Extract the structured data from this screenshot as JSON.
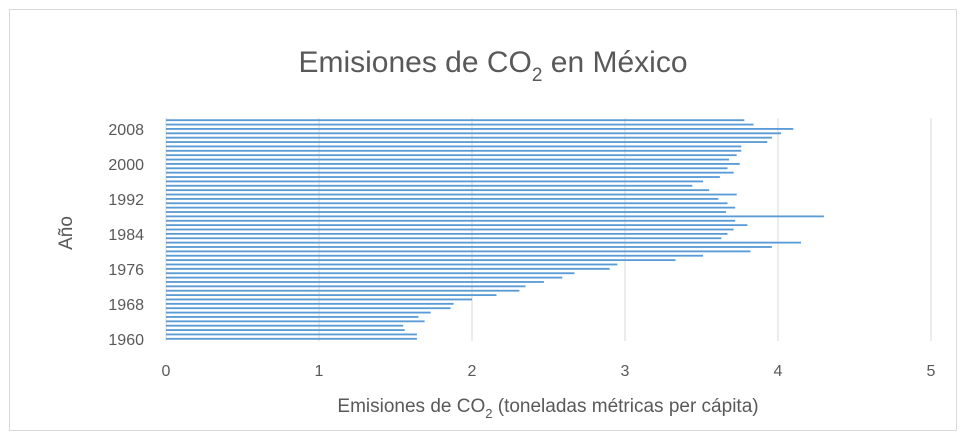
{
  "chart_data": {
    "type": "bar",
    "orientation": "horizontal",
    "title": "Emisiones de CO",
    "title_sub": "2",
    "title_suffix": " en México",
    "ylabel": "Año",
    "xlabel": "Emisiones de CO",
    "xlabel_sub": "2",
    "xlabel_suffix": " (toneladas métricas per cápita)",
    "xlim": [
      0,
      5
    ],
    "x_ticks": [
      "0",
      "1",
      "2",
      "3",
      "4",
      "5"
    ],
    "y_tick_labels": [
      "1960",
      "1968",
      "1976",
      "1984",
      "1992",
      "2000",
      "2008"
    ],
    "grid": "vertical",
    "bar_color": "#5b9bd5",
    "categories": [
      1960,
      1961,
      1962,
      1963,
      1964,
      1965,
      1966,
      1967,
      1968,
      1969,
      1970,
      1971,
      1972,
      1973,
      1974,
      1975,
      1976,
      1977,
      1978,
      1979,
      1980,
      1981,
      1982,
      1983,
      1984,
      1985,
      1986,
      1987,
      1988,
      1989,
      1990,
      1991,
      1992,
      1993,
      1994,
      1995,
      1996,
      1997,
      1998,
      1999,
      2000,
      2001,
      2002,
      2003,
      2004,
      2005,
      2006,
      2007,
      2008,
      2009,
      2010
    ],
    "values": [
      1.64,
      1.64,
      1.56,
      1.55,
      1.69,
      1.65,
      1.73,
      1.86,
      1.88,
      2.0,
      2.16,
      2.31,
      2.35,
      2.47,
      2.59,
      2.67,
      2.9,
      2.95,
      3.33,
      3.51,
      3.82,
      3.96,
      4.15,
      3.63,
      3.67,
      3.71,
      3.8,
      3.72,
      4.3,
      3.66,
      3.72,
      3.67,
      3.61,
      3.73,
      3.55,
      3.44,
      3.51,
      3.62,
      3.71,
      3.67,
      3.75,
      3.68,
      3.73,
      3.76,
      3.76,
      3.93,
      3.96,
      4.02,
      4.1,
      3.84,
      3.78
    ]
  }
}
